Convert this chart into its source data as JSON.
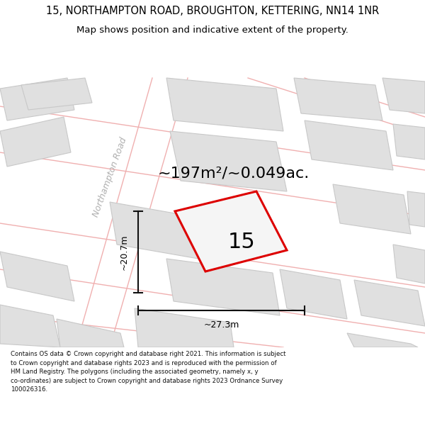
{
  "title": "15, NORTHAMPTON ROAD, BROUGHTON, KETTERING, NN14 1NR",
  "subtitle": "Map shows position and indicative extent of the property.",
  "area_text": "~197m²/~0.049ac.",
  "property_number": "15",
  "dim_width": "~27.3m",
  "dim_height": "~20.7m",
  "road_label": "Northampton Road",
  "footer_text": "Contains OS data © Crown copyright and database right 2021. This information is subject to Crown copyright and database rights 2023 and is reproduced with the permission of HM Land Registry. The polygons (including the associated geometry, namely x, y co-ordinates) are subject to Crown copyright and database rights 2023 Ordnance Survey 100026316.",
  "map_bg": "#ffffff",
  "building_fill": "#e0e0e0",
  "building_edge": "#c8c8c8",
  "road_line_color": "#f0b0b0",
  "property_outline_color": "#dd0000",
  "property_fill": "#f0f0f0",
  "dim_line_color": "#111111",
  "title_color": "#000000",
  "footer_color": "#111111",
  "road_label_color": "#b0b0b0",
  "title_fontsize": 10.5,
  "subtitle_fontsize": 9.5,
  "area_fontsize": 16,
  "number_fontsize": 22,
  "dim_fontsize": 9,
  "footer_fontsize": 6.2,
  "road_label_fontsize": 9
}
